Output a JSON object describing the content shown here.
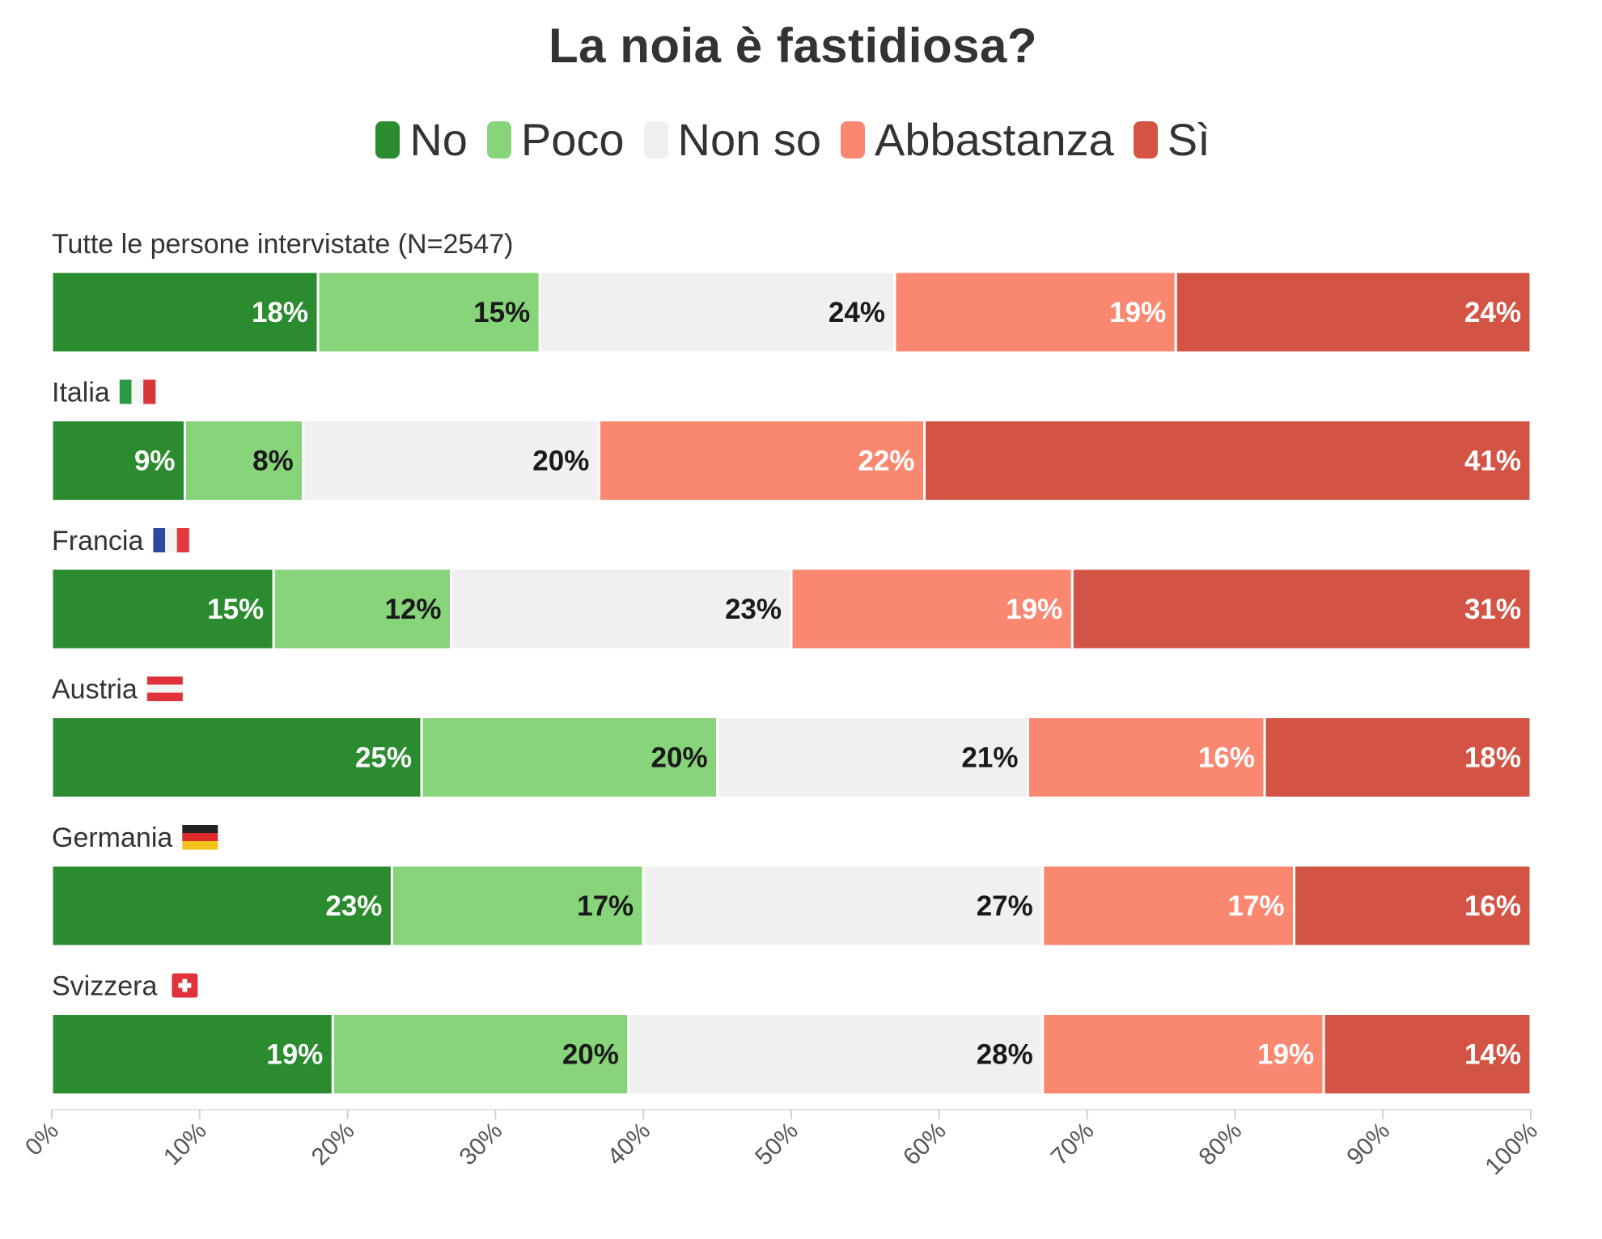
{
  "chart_data": {
    "type": "bar",
    "orientation": "horizontal-stacked-100",
    "title": "La noia è fastidiosa?",
    "legend_position": "top-center",
    "series": [
      {
        "name": "No",
        "color": "#2a8c2e",
        "text_color": "#ffffff"
      },
      {
        "name": "Poco",
        "color": "#87d47a",
        "text_color": "#1a1a1a"
      },
      {
        "name": "Non so",
        "color": "#f0f0f0",
        "text_color": "#1a1a1a"
      },
      {
        "name": "Abbastanza",
        "color": "#fa8871",
        "text_color": "#ffffff"
      },
      {
        "name": "Sì",
        "color": "#d35444",
        "text_color": "#ffffff"
      }
    ],
    "categories": [
      {
        "label": "Tutte le persone intervistate (N=2547)",
        "flag": "",
        "values": [
          18,
          15,
          24,
          19,
          24
        ]
      },
      {
        "label": "Italia",
        "flag": "italy-flag",
        "values": [
          9,
          8,
          20,
          22,
          41
        ]
      },
      {
        "label": "Francia",
        "flag": "france-flag",
        "values": [
          15,
          12,
          23,
          19,
          31
        ]
      },
      {
        "label": "Austria",
        "flag": "austria-flag",
        "values": [
          25,
          20,
          21,
          16,
          18
        ]
      },
      {
        "label": "Germania",
        "flag": "germany-flag",
        "values": [
          23,
          17,
          27,
          17,
          16
        ]
      },
      {
        "label": "Svizzera",
        "flag": "switzerland-flag",
        "values": [
          19,
          20,
          28,
          19,
          14
        ]
      }
    ],
    "value_suffix": "%",
    "xlim": [
      0,
      100
    ],
    "xticks": [
      0,
      10,
      20,
      30,
      40,
      50,
      60,
      70,
      80,
      90,
      100
    ],
    "tick_labels": [
      "0%",
      "10%",
      "20%",
      "30%",
      "40%",
      "50%",
      "60%",
      "70%",
      "80%",
      "90%",
      "100%"
    ],
    "xlabel": "",
    "ylabel": ""
  }
}
